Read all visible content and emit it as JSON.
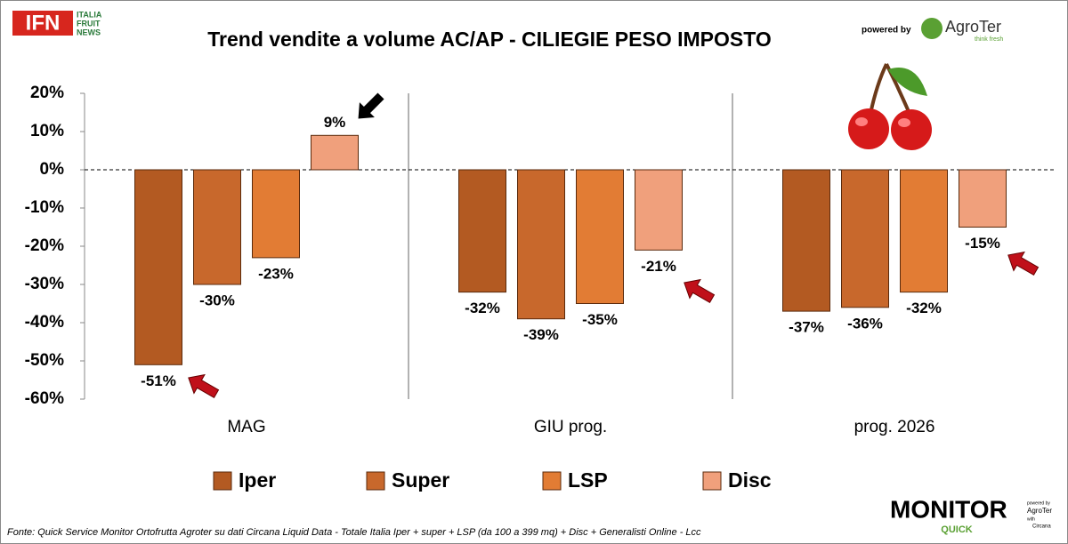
{
  "chart_data": {
    "type": "bar",
    "title": "Trend vendite a volume AC/AP - CILIEGIE PESO IMPOSTO",
    "categories": [
      "MAG",
      "GIU prog.",
      "prog. 2026"
    ],
    "series": [
      {
        "name": "Iper",
        "color": "#b35a22",
        "values": [
          -51,
          -32,
          -37
        ],
        "value_labels": [
          "-51%",
          "-32%",
          "-37%"
        ]
      },
      {
        "name": "Super",
        "color": "#c8682c",
        "values": [
          -30,
          -39,
          -36
        ],
        "value_labels": [
          "-30%",
          "-39%",
          "-36%"
        ]
      },
      {
        "name": "LSP",
        "color": "#e27c34",
        "values": [
          -23,
          -35,
          -32
        ],
        "value_labels": [
          "-23%",
          "-35%",
          "-32%"
        ]
      },
      {
        "name": "Disc",
        "color": "#f0a07c",
        "values": [
          9,
          -21,
          -15
        ],
        "value_labels": [
          "9%",
          "-21%",
          "-15%"
        ]
      }
    ],
    "ylim": [
      -60,
      20
    ],
    "yticks": [
      {
        "value": 20,
        "label": "20%"
      },
      {
        "value": 10,
        "label": "10%"
      },
      {
        "value": 0,
        "label": "0%"
      },
      {
        "value": -10,
        "label": "-10%"
      },
      {
        "value": -20,
        "label": "-20%"
      },
      {
        "value": -30,
        "label": "-30%"
      },
      {
        "value": -40,
        "label": "-40%"
      },
      {
        "value": -50,
        "label": "-50%"
      },
      {
        "value": -60,
        "label": "-60%"
      }
    ],
    "grid": false,
    "source": "Fonte: Quick Service Monitor Ortofrutta Agroter su dati Circana Liquid Data - Totale Italia Iper + super + LSP (da 100 a 399 mq) + Disc + Generalisti Online - Lcc"
  },
  "branding": {
    "ifn": "IFN",
    "ifn_lines": [
      "ITALIA",
      "FRUIT",
      "NEWS"
    ],
    "powered_by": "powered by",
    "agroter": "AgroTer",
    "agroter_tagline": "think fresh",
    "monitor": "MONITOR",
    "quick": "QUICK",
    "monitor_side": [
      "powered by",
      "AgroTer",
      "with",
      "Circana"
    ]
  }
}
